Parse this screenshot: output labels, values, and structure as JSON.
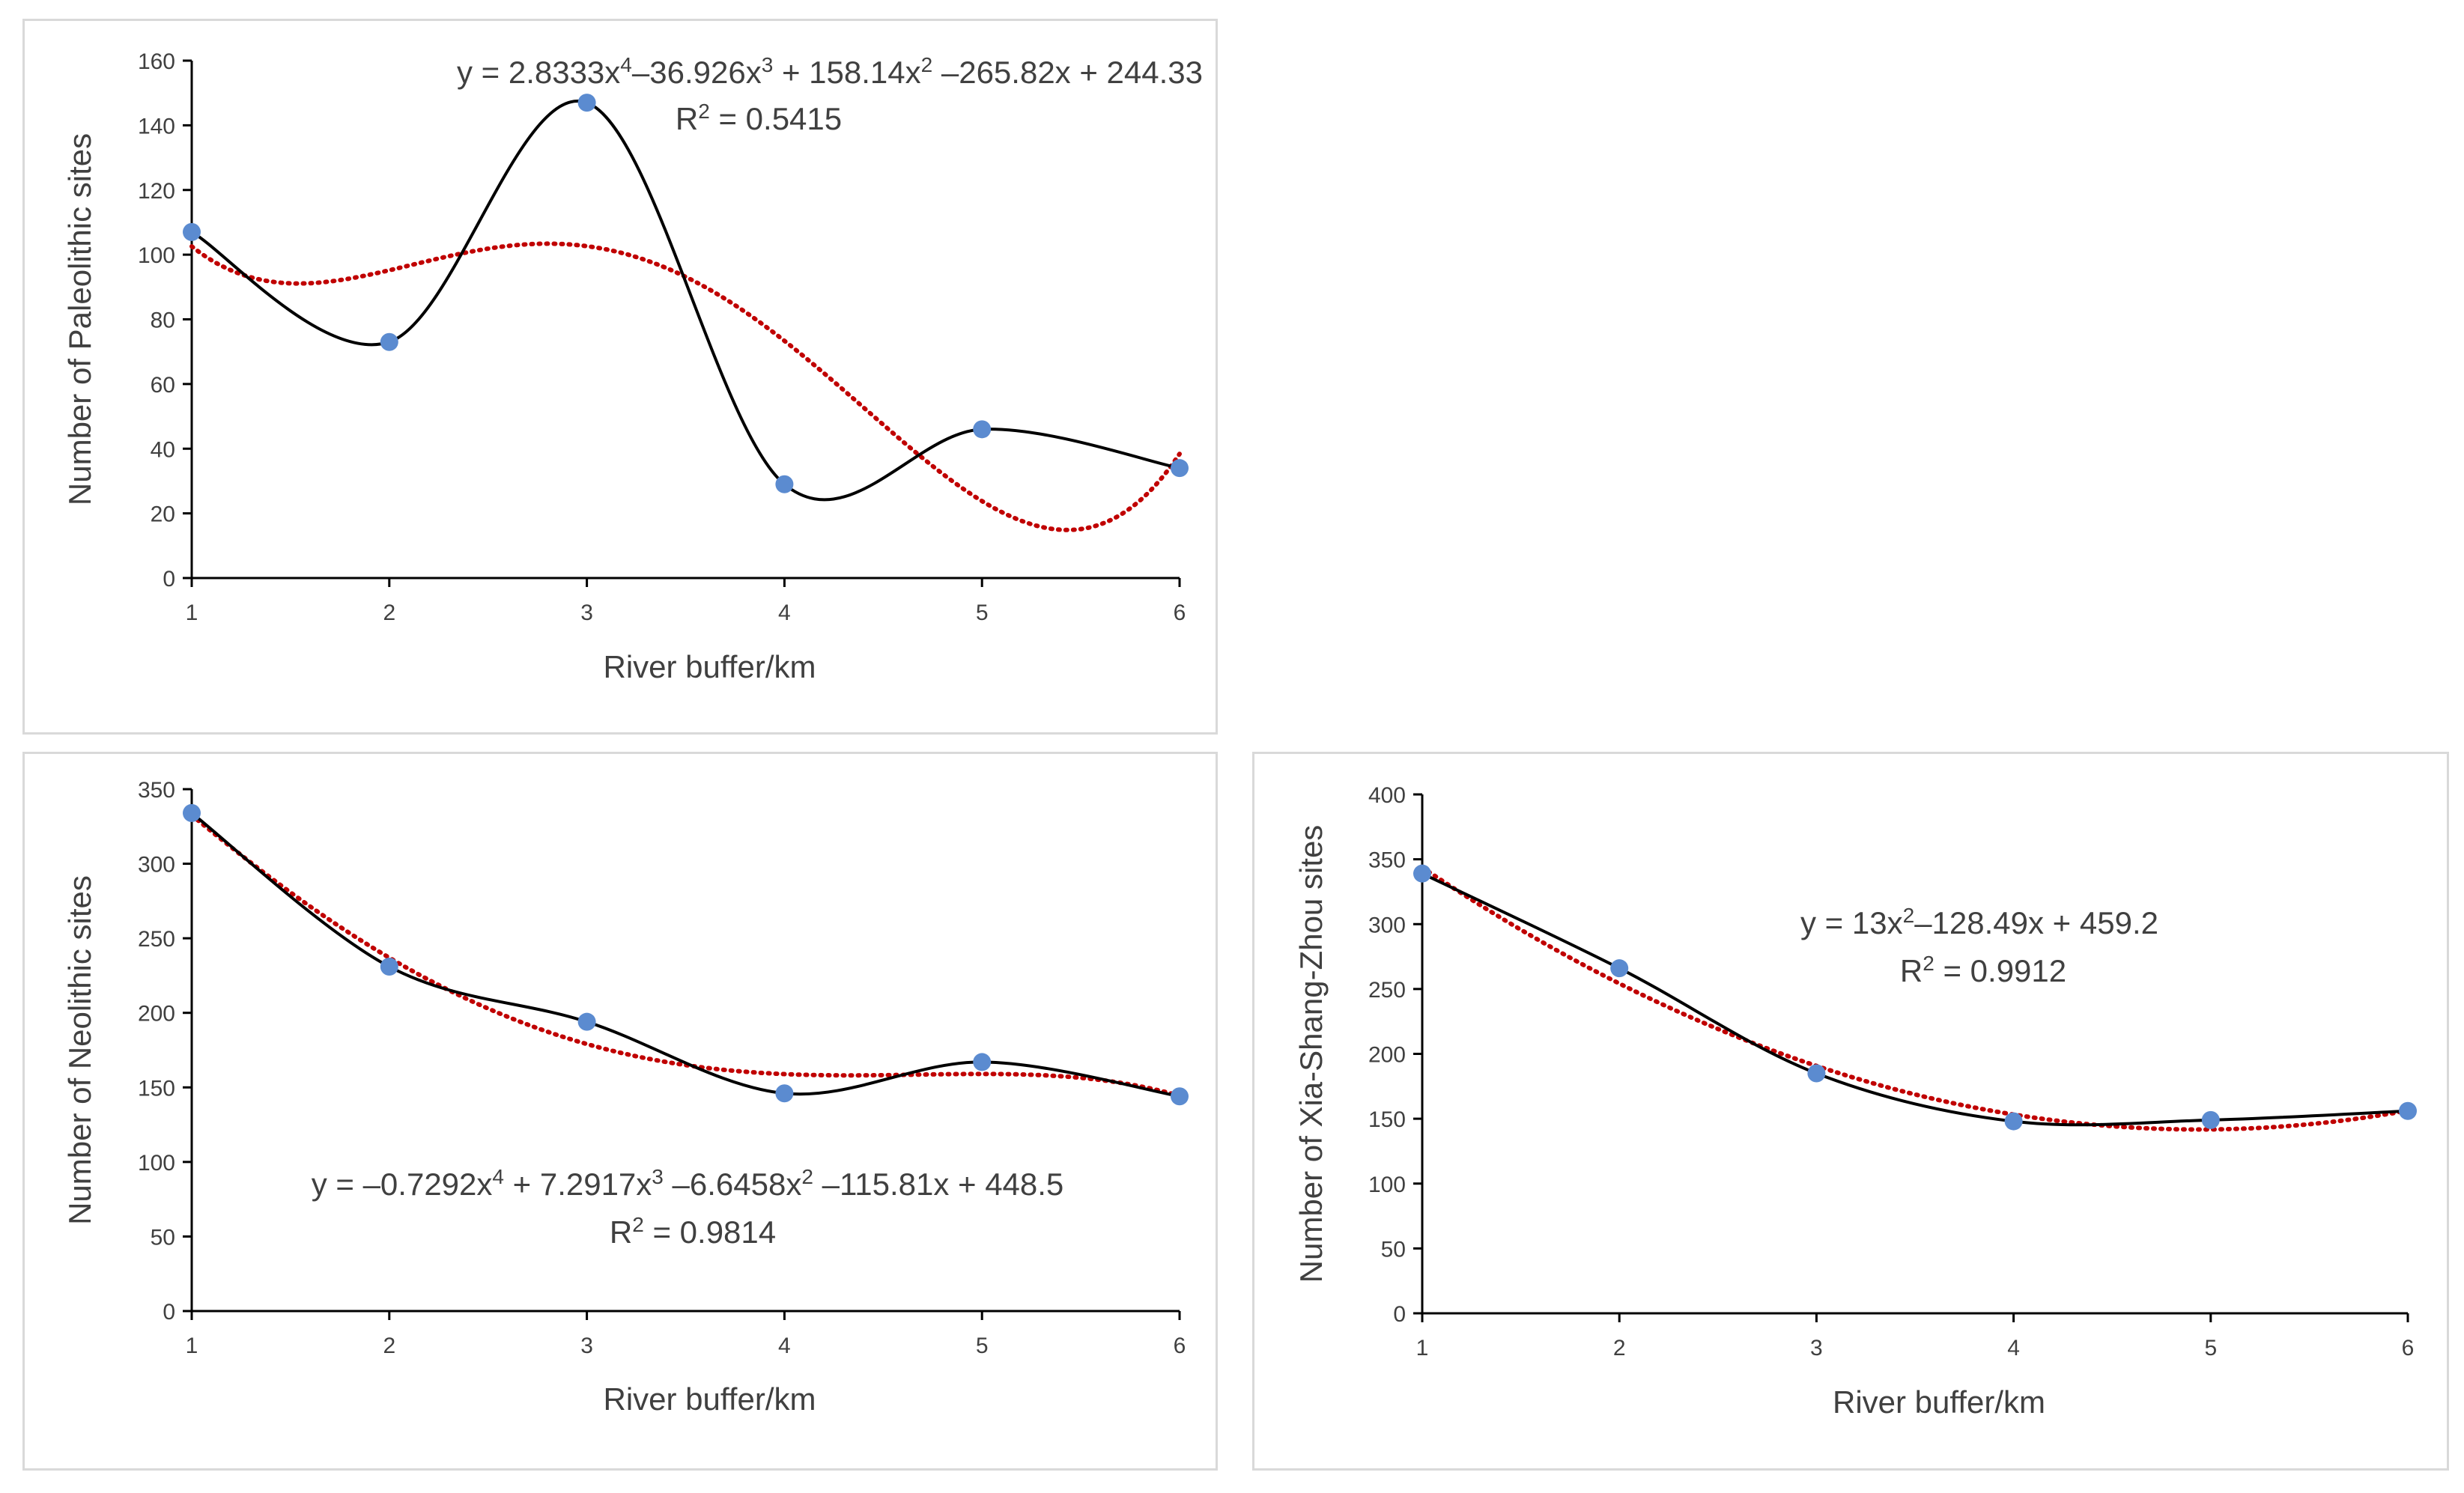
{
  "chart_data": [
    {
      "id": "paleolithic",
      "type": "line",
      "x": [
        1,
        2,
        3,
        4,
        5,
        6
      ],
      "series": [
        {
          "name": "observed",
          "values": [
            107,
            73,
            147,
            29,
            46,
            34
          ],
          "color": "#000000",
          "marker_color": "#5b8bd0",
          "smooth": true
        },
        {
          "name": "trendline",
          "kind": "poly4",
          "coefficients": [
            2.8333,
            -36.926,
            158.14,
            -265.82,
            244.33
          ],
          "color": "#c00000",
          "dotted": true
        }
      ],
      "xlabel": "River buffer/km",
      "ylabel": "Number of Paleolithic sites",
      "xlim": [
        1,
        6
      ],
      "ylim": [
        0,
        160
      ],
      "yticks": [
        0,
        20,
        40,
        60,
        80,
        100,
        120,
        140,
        160
      ],
      "xticks": [
        1,
        2,
        3,
        4,
        5,
        6
      ],
      "equation_parts": [
        "y = 2.8333x",
        "4",
        "–36.926x",
        "3",
        " + 158.14x",
        "2",
        " –265.82x + 244.33"
      ],
      "r2_parts": [
        "R",
        "2",
        " = 0.5415"
      ],
      "equation_placement": "top-right"
    },
    {
      "id": "neolithic",
      "type": "line",
      "x": [
        1,
        2,
        3,
        4,
        5,
        6
      ],
      "series": [
        {
          "name": "observed",
          "values": [
            334,
            231,
            194,
            146,
            167,
            144
          ],
          "color": "#000000",
          "marker_color": "#5b8bd0",
          "smooth": true
        },
        {
          "name": "trendline",
          "kind": "poly4",
          "coefficients": [
            -0.7292,
            7.2917,
            -6.6458,
            -115.81,
            448.5
          ],
          "color": "#c00000",
          "dotted": true
        }
      ],
      "xlabel": "River buffer/km",
      "ylabel": "Number of Neolithic sites",
      "xlim": [
        1,
        6
      ],
      "ylim": [
        0,
        350
      ],
      "yticks": [
        0,
        50,
        100,
        150,
        200,
        250,
        300,
        350
      ],
      "xticks": [
        1,
        2,
        3,
        4,
        5,
        6
      ],
      "equation_parts": [
        "y = –0.7292x",
        "4",
        " + 7.2917x",
        "3",
        " –6.6458x",
        "2",
        " –115.81x + 448.5"
      ],
      "r2_parts": [
        "R",
        "2",
        " = 0.9814"
      ],
      "equation_placement": "bottom-center"
    },
    {
      "id": "xia-shang-zhou",
      "type": "line",
      "x": [
        1,
        2,
        3,
        4,
        5,
        6
      ],
      "series": [
        {
          "name": "observed",
          "values": [
            339,
            266,
            185,
            148,
            149,
            156
          ],
          "color": "#000000",
          "marker_color": "#5b8bd0",
          "smooth": true
        },
        {
          "name": "trendline",
          "kind": "poly2",
          "coefficients": [
            13,
            -128.49,
            459.2
          ],
          "color": "#c00000",
          "dotted": true
        }
      ],
      "xlabel": "River buffer/km",
      "ylabel": "Number of Xia-Shang-Zhou sites",
      "xlim": [
        1,
        6
      ],
      "ylim": [
        0,
        400
      ],
      "yticks": [
        0,
        50,
        100,
        150,
        200,
        250,
        300,
        350,
        400
      ],
      "xticks": [
        1,
        2,
        3,
        4,
        5,
        6
      ],
      "equation_parts": [
        "y = 13x",
        "2",
        "–128.49x + 459.2"
      ],
      "r2_parts": [
        "R",
        "2",
        " = 0.9912"
      ],
      "equation_placement": "center"
    }
  ]
}
